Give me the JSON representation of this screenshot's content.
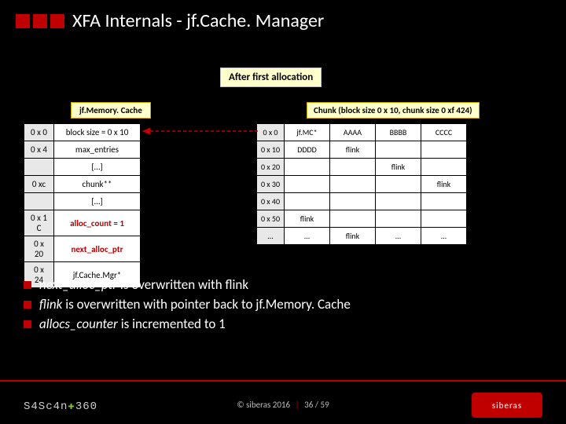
{
  "title": "XFA Internals - jf.Cache. Manager",
  "after_label": "After first allocation",
  "chunk_label": "Chunk (block size 0 x 10, chunk size 0 xf 424)",
  "mc_label": "jf.Memory. Cache",
  "mc_rows": [
    {
      "addr": "0 x 0",
      "val": "block size = 0 x 10"
    },
    {
      "addr": "0 x 4",
      "val": "max_entries"
    },
    {
      "addr": "",
      "val": "[…]"
    },
    {
      "addr": "0 xc",
      "val": "chunk**"
    },
    {
      "addr": "",
      "val": "[…]"
    },
    {
      "addr": "0 x 1 C",
      "val": "alloc_count = 1"
    },
    {
      "addr": "0 x 20",
      "val": "next_alloc_ptr"
    },
    {
      "addr": "0 x 24",
      "val": "jf.Cache.Mgr*"
    }
  ],
  "mc_highlight_rows": [
    5,
    6
  ],
  "chunk_addrs": [
    "0 x 0",
    "0 x 10",
    "0 x 20",
    "0 x 30",
    "0 x 40",
    "0 x 50",
    "…"
  ],
  "chunk_grid": [
    [
      "jf.MC*",
      "AAAA",
      "BBBB",
      "CCCC"
    ],
    [
      "DDDD",
      "flink",
      "",
      ""
    ],
    [
      "",
      "",
      "flink",
      ""
    ],
    [
      "",
      "",
      "",
      "flink"
    ],
    [
      "",
      "",
      "",
      ""
    ],
    [
      "flink",
      "",
      "",
      ""
    ],
    [
      "…",
      "flink",
      "…",
      "…"
    ]
  ],
  "bullets": [
    {
      "em": "next_alloc_ptr",
      "rest": " is overwritten with flink"
    },
    {
      "em": "flink",
      "rest": " is overwritten with pointer back to jf.Memory. Cache"
    },
    {
      "em": "allocs_counter",
      "rest": " is incremented to 1"
    }
  ],
  "logo_left_a": "S4Sc4n",
  "logo_left_b": "360",
  "logo_right": "siberas",
  "copyright": "© siberas 2016",
  "page": "36 / 59",
  "colors": {
    "accent": "#c00000",
    "badge_bg": "#ffffcc"
  }
}
